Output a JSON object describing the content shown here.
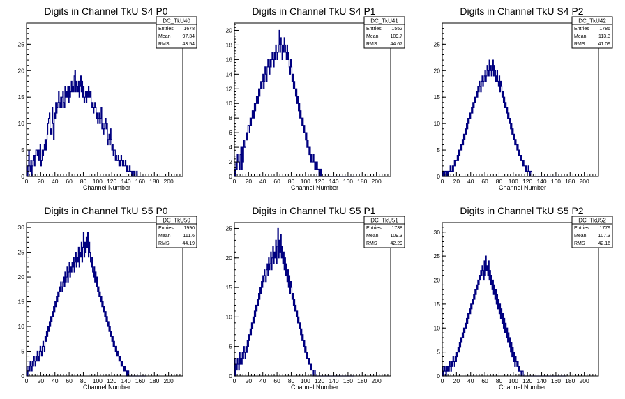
{
  "chart_data": [
    {
      "type": "histogram",
      "title": "Digits in Channel TkU S4 P0",
      "xlabel": "Channel Number",
      "ylabel": "",
      "xlim": [
        0,
        220
      ],
      "ylim": [
        0,
        29
      ],
      "xticks": [
        0,
        20,
        40,
        60,
        80,
        100,
        120,
        140,
        160,
        180,
        200
      ],
      "yticks": [
        0,
        5,
        10,
        15,
        20,
        25
      ],
      "stats": {
        "name": "DC_TkU40",
        "entries": "1678",
        "mean": "97.34",
        "rms": "43.54"
      },
      "bin_width": 1,
      "values": [
        2,
        0,
        2,
        5,
        2,
        1,
        3,
        0,
        2,
        3,
        4,
        2,
        4,
        5,
        5,
        4,
        5,
        3,
        5,
        6,
        2,
        3,
        5,
        4,
        5,
        6,
        7,
        5,
        7,
        8,
        10,
        11,
        12,
        8,
        9,
        8,
        13,
        10,
        7,
        12,
        11,
        14,
        12,
        13,
        14,
        16,
        14,
        13,
        15,
        13,
        15,
        16,
        14,
        13,
        17,
        15,
        16,
        15,
        17,
        14,
        17,
        15,
        16,
        18,
        16,
        17,
        16,
        19,
        20,
        16,
        18,
        17,
        16,
        18,
        15,
        17,
        19,
        16,
        18,
        15,
        17,
        14,
        15,
        16,
        14,
        16,
        15,
        17,
        16,
        15,
        16,
        14,
        13,
        14,
        12,
        13,
        14,
        13,
        11,
        12,
        10,
        11,
        12,
        10,
        11,
        13,
        9,
        10,
        8,
        9,
        10,
        11,
        9,
        10,
        6,
        7,
        8,
        6,
        9,
        7,
        5,
        6,
        4,
        5,
        5,
        3,
        4,
        3,
        3,
        4,
        2,
        3,
        2,
        4,
        3,
        2,
        3,
        2,
        2,
        3,
        2,
        1,
        2,
        1,
        1,
        2,
        1,
        1,
        0,
        1,
        1,
        0,
        1,
        0,
        0,
        1,
        0,
        0,
        0,
        0,
        0,
        0,
        0,
        0,
        0,
        0
      ]
    },
    {
      "type": "histogram",
      "title": "Digits in Channel TkU S4 P1",
      "xlabel": "Channel Number",
      "ylabel": "",
      "xlim": [
        0,
        220
      ],
      "ylim": [
        0,
        21
      ],
      "xticks": [
        0,
        20,
        40,
        60,
        80,
        100,
        120,
        140,
        160,
        180,
        200
      ],
      "yticks": [
        0,
        2,
        4,
        6,
        8,
        10,
        12,
        14,
        16,
        18,
        20
      ],
      "stats": {
        "name": "DC_TkU41",
        "entries": "1552",
        "mean": "109.7",
        "rms": "44.67"
      },
      "bin_width": 1,
      "values": [
        1,
        0,
        2,
        1,
        3,
        2,
        2,
        1,
        3,
        4,
        1,
        4,
        2,
        5,
        4,
        4,
        5,
        6,
        5,
        7,
        7,
        6,
        8,
        7,
        8,
        9,
        9,
        8,
        10,
        9,
        10,
        11,
        11,
        10,
        12,
        11,
        12,
        13,
        12,
        13,
        14,
        12,
        13,
        15,
        14,
        13,
        15,
        16,
        15,
        14,
        16,
        15,
        16,
        17,
        16,
        15,
        17,
        16,
        18,
        17,
        16,
        17,
        18,
        20,
        17,
        19,
        18,
        16,
        18,
        17,
        19,
        18,
        17,
        16,
        18,
        16,
        17,
        15,
        14,
        16,
        15,
        13,
        14,
        12,
        13,
        12,
        11,
        12,
        10,
        11,
        9,
        10,
        8,
        9,
        8,
        7,
        8,
        6,
        7,
        6,
        5,
        6,
        4,
        5,
        4,
        3,
        4,
        2,
        3,
        2,
        2,
        3,
        2,
        1,
        2,
        1,
        2,
        1,
        1,
        0,
        1,
        0,
        1,
        0,
        0,
        0,
        0,
        0,
        0,
        0,
        0,
        0,
        0,
        0,
        0,
        0,
        0,
        0,
        0,
        0,
        0,
        0,
        0,
        0,
        0,
        0,
        0,
        0,
        0,
        0,
        0,
        0,
        0,
        0,
        0,
        0,
        0,
        0,
        0,
        0,
        0,
        0,
        0,
        0,
        0,
        0,
        0,
        0
      ]
    },
    {
      "type": "histogram",
      "title": "Digits in Channel TkU S4 P2",
      "xlabel": "Channel Number",
      "ylabel": "",
      "xlim": [
        0,
        220
      ],
      "ylim": [
        0,
        29
      ],
      "xticks": [
        0,
        20,
        40,
        60,
        80,
        100,
        120,
        140,
        160,
        180,
        200
      ],
      "yticks": [
        0,
        5,
        10,
        15,
        20,
        25
      ],
      "stats": {
        "name": "DC_TkU42",
        "entries": "1786",
        "mean": "113.3",
        "rms": "41.09"
      },
      "bin_width": 1,
      "values": [
        1,
        0,
        1,
        0,
        1,
        1,
        0,
        1,
        0,
        1,
        1,
        2,
        1,
        1,
        2,
        1,
        2,
        3,
        2,
        3,
        3,
        4,
        3,
        5,
        4,
        5,
        6,
        5,
        7,
        6,
        8,
        7,
        9,
        8,
        10,
        9,
        11,
        10,
        12,
        11,
        12,
        13,
        12,
        14,
        13,
        15,
        14,
        15,
        16,
        15,
        17,
        16,
        18,
        17,
        16,
        18,
        19,
        17,
        18,
        19,
        20,
        18,
        19,
        21,
        20,
        19,
        22,
        20,
        21,
        19,
        20,
        22,
        19,
        21,
        20,
        18,
        19,
        20,
        18,
        17,
        19,
        16,
        18,
        17,
        15,
        16,
        14,
        15,
        13,
        14,
        12,
        13,
        11,
        12,
        10,
        11,
        9,
        10,
        8,
        9,
        7,
        8,
        6,
        7,
        6,
        5,
        6,
        4,
        5,
        4,
        3,
        4,
        3,
        2,
        3,
        2,
        2,
        1,
        2,
        1,
        1,
        2,
        1,
        0,
        1,
        1,
        0,
        0,
        0,
        0,
        0,
        0,
        0,
        0,
        0,
        0,
        0,
        0,
        0,
        0,
        0,
        0,
        0,
        0,
        0,
        0,
        0,
        0,
        0,
        0,
        0,
        0,
        0,
        0,
        0,
        0,
        0,
        0,
        0,
        0,
        0,
        0,
        0,
        0,
        0,
        0,
        0,
        0
      ]
    },
    {
      "type": "histogram",
      "title": "Digits in Channel TkU S5 P0",
      "xlabel": "Channel Number",
      "ylabel": "",
      "xlim": [
        0,
        220
      ],
      "ylim": [
        0,
        31
      ],
      "xticks": [
        0,
        20,
        40,
        60,
        80,
        100,
        120,
        140,
        160,
        180,
        200
      ],
      "yticks": [
        0,
        5,
        10,
        15,
        20,
        25,
        30
      ],
      "stats": {
        "name": "DC_TkU50",
        "entries": "1990",
        "mean": "111.6",
        "rms": "44.19"
      },
      "bin_width": 1,
      "values": [
        2,
        0,
        1,
        2,
        1,
        3,
        2,
        1,
        3,
        2,
        4,
        3,
        2,
        4,
        3,
        5,
        4,
        3,
        5,
        6,
        5,
        4,
        6,
        7,
        6,
        5,
        8,
        7,
        9,
        8,
        10,
        9,
        11,
        10,
        12,
        11,
        13,
        12,
        14,
        13,
        15,
        14,
        16,
        15,
        17,
        16,
        18,
        17,
        19,
        18,
        17,
        19,
        20,
        18,
        21,
        19,
        20,
        22,
        19,
        21,
        23,
        20,
        22,
        21,
        23,
        22,
        24,
        21,
        23,
        25,
        22,
        24,
        23,
        26,
        22,
        25,
        24,
        27,
        23,
        26,
        29,
        24,
        27,
        25,
        28,
        26,
        29,
        24,
        27,
        25,
        23,
        22,
        24,
        21,
        20,
        22,
        19,
        21,
        18,
        20,
        17,
        18,
        16,
        17,
        15,
        16,
        14,
        15,
        13,
        14,
        12,
        13,
        11,
        12,
        10,
        11,
        9,
        10,
        8,
        9,
        7,
        8,
        6,
        7,
        6,
        5,
        6,
        4,
        5,
        4,
        3,
        4,
        3,
        2,
        3,
        2,
        2,
        1,
        2,
        1,
        1,
        0,
        1,
        1,
        0,
        0,
        0,
        0,
        0,
        0,
        0,
        0,
        0,
        0,
        0,
        0,
        0,
        0,
        0,
        0,
        0,
        0,
        0,
        0,
        0,
        0,
        0,
        0,
        0
      ]
    },
    {
      "type": "histogram",
      "title": "Digits in Channel TkU S5 P1",
      "xlabel": "Channel Number",
      "ylabel": "",
      "xlim": [
        0,
        220
      ],
      "ylim": [
        0,
        26
      ],
      "xticks": [
        0,
        20,
        40,
        60,
        80,
        100,
        120,
        140,
        160,
        180,
        200
      ],
      "yticks": [
        0,
        5,
        10,
        15,
        20,
        25
      ],
      "stats": {
        "name": "DC_TkU51",
        "entries": "1738",
        "mean": "109.3",
        "rms": "42.29"
      },
      "bin_width": 1,
      "values": [
        3,
        0,
        2,
        1,
        3,
        2,
        1,
        4,
        2,
        3,
        2,
        4,
        3,
        5,
        4,
        3,
        5,
        4,
        6,
        5,
        7,
        6,
        8,
        7,
        9,
        8,
        10,
        9,
        11,
        10,
        12,
        11,
        13,
        12,
        14,
        13,
        15,
        14,
        16,
        15,
        17,
        16,
        18,
        17,
        16,
        18,
        19,
        17,
        20,
        18,
        19,
        21,
        18,
        20,
        22,
        19,
        21,
        20,
        23,
        19,
        22,
        25,
        20,
        23,
        21,
        24,
        20,
        22,
        19,
        21,
        18,
        20,
        17,
        19,
        16,
        18,
        15,
        17,
        14,
        16,
        15,
        13,
        14,
        12,
        13,
        11,
        12,
        10,
        11,
        9,
        10,
        8,
        9,
        7,
        8,
        6,
        7,
        5,
        6,
        4,
        5,
        3,
        4,
        3,
        2,
        3,
        2,
        1,
        2,
        1,
        1,
        0,
        1,
        1,
        0,
        0,
        0,
        0,
        0,
        0,
        0,
        0,
        0,
        0,
        0,
        0,
        0,
        0,
        0,
        0,
        0,
        0,
        0,
        0,
        0,
        0,
        0,
        0,
        0,
        0,
        0,
        0,
        0,
        0,
        0,
        0,
        0,
        0,
        0,
        0,
        0,
        0,
        0,
        0,
        0,
        0,
        0,
        0,
        0,
        0,
        0,
        0,
        0,
        0,
        0,
        0,
        0,
        0,
        0
      ]
    },
    {
      "type": "histogram",
      "title": "Digits in Channel TkU S5 P2",
      "xlabel": "Channel Number",
      "ylabel": "",
      "xlim": [
        0,
        220
      ],
      "ylim": [
        0,
        32
      ],
      "xticks": [
        0,
        20,
        40,
        60,
        80,
        100,
        120,
        140,
        160,
        180,
        200
      ],
      "yticks": [
        0,
        5,
        10,
        15,
        20,
        25,
        30
      ],
      "stats": {
        "name": "DC_TkU52",
        "entries": "1779",
        "mean": "107.3",
        "rms": "42.16"
      },
      "bin_width": 1,
      "values": [
        2,
        0,
        1,
        2,
        1,
        0,
        2,
        1,
        2,
        1,
        3,
        2,
        1,
        3,
        2,
        4,
        3,
        2,
        4,
        3,
        5,
        4,
        6,
        5,
        7,
        6,
        8,
        7,
        9,
        8,
        10,
        9,
        11,
        10,
        12,
        11,
        13,
        12,
        14,
        13,
        15,
        14,
        16,
        15,
        17,
        16,
        18,
        17,
        19,
        18,
        20,
        19,
        21,
        20,
        22,
        21,
        23,
        22,
        20,
        24,
        21,
        25,
        22,
        23,
        21,
        24,
        20,
        22,
        19,
        21,
        18,
        20,
        17,
        19,
        16,
        18,
        15,
        17,
        14,
        16,
        13,
        15,
        12,
        14,
        11,
        13,
        10,
        12,
        9,
        11,
        8,
        10,
        7,
        9,
        6,
        8,
        5,
        7,
        4,
        6,
        3,
        5,
        2,
        4,
        3,
        2,
        3,
        1,
        2,
        1,
        1,
        0,
        1,
        1,
        0,
        0,
        0,
        0,
        0,
        0,
        0,
        0,
        0,
        0,
        0,
        0,
        0,
        0,
        0,
        0,
        0,
        0,
        0,
        0,
        0,
        0,
        0,
        0,
        0,
        0,
        0,
        0,
        0,
        0,
        0,
        0,
        0,
        0,
        0,
        0,
        0,
        0,
        0,
        0,
        0,
        0,
        0,
        0,
        0,
        0,
        0,
        0,
        0,
        0,
        0,
        0,
        0,
        0,
        0,
        0,
        0,
        0,
        0,
        0,
        0
      ]
    }
  ],
  "stats_labels": {
    "entries": "Entries",
    "mean": "Mean",
    "rms": "RMS"
  },
  "colors": {
    "line": "#000080",
    "axis": "#000000",
    "background": "#ffffff"
  }
}
